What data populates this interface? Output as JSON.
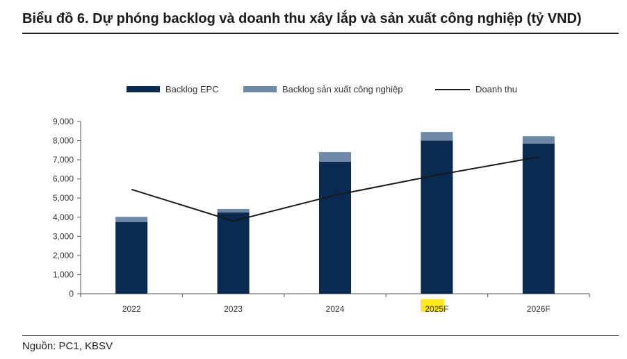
{
  "header": {
    "title": "Biểu đồ 6. Dự phóng backlog và doanh thu xây lắp và sản xuất công nghiệp (tỷ VND)"
  },
  "footer": {
    "source": "Nguồn: PC1, KBSV"
  },
  "colors": {
    "epc": "#0b2a52",
    "industrial": "#6e89a8",
    "revenue": "#1a1a1a",
    "highlight": "#ffe81a"
  },
  "chart_data": {
    "type": "bar",
    "stacked": true,
    "categories": [
      "2022",
      "2023",
      "2024",
      "2025F",
      "2026F"
    ],
    "series": [
      {
        "name": "Backlog EPC",
        "type": "bar",
        "values": [
          3750,
          4250,
          6900,
          8000,
          7850
        ]
      },
      {
        "name": "Backlog sản xuất công nghiệp",
        "type": "bar",
        "values": [
          270,
          180,
          500,
          450,
          380
        ]
      },
      {
        "name": "Doanh thu",
        "type": "line",
        "values": [
          5450,
          3800,
          5150,
          6200,
          7150
        ]
      }
    ],
    "ylim": [
      0,
      9000
    ],
    "y_ticks": [
      "9,000",
      "8,000",
      "7,000",
      "6,000",
      "5,000",
      "4,000",
      "3,000",
      "2,000",
      "1,000",
      "0"
    ],
    "legend_position": "top",
    "grid": false
  }
}
